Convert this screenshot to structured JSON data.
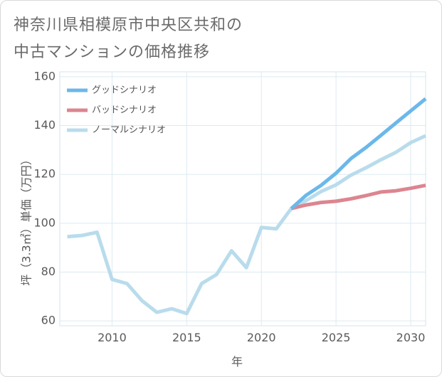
{
  "title": {
    "line1": "神奈川県相模原市中央区共和の",
    "line2": "中古マンションの価格推移"
  },
  "chart_data": {
    "type": "line",
    "xlabel": "年",
    "ylabel": "坪（3.3㎡）単価（万円）",
    "xlim": [
      2006.5,
      2031
    ],
    "ylim": [
      58,
      162
    ],
    "xticks": [
      2010,
      2015,
      2020,
      2025,
      2030
    ],
    "yticks": [
      60,
      80,
      100,
      120,
      140,
      160
    ],
    "grid": true,
    "legend_position": "top-left",
    "series": [
      {
        "name": "グッドシナリオ",
        "color": "#6bb8ea",
        "x": [
          2022,
          2023,
          2024,
          2025,
          2026,
          2027,
          2028,
          2029,
          2030,
          2031
        ],
        "values": [
          106,
          111.5,
          115.5,
          120.5,
          126.5,
          131,
          136,
          141,
          146,
          151
        ]
      },
      {
        "name": "バッドシナリオ",
        "color": "#dc8590",
        "x": [
          2022,
          2023,
          2024,
          2025,
          2026,
          2027,
          2028,
          2029,
          2030,
          2031
        ],
        "values": [
          106,
          107.5,
          108.5,
          109,
          110,
          111.3,
          112.8,
          113.3,
          114.3,
          115.5
        ]
      },
      {
        "name": "ノーマルシナリオ",
        "color": "#b9dcec",
        "x": [
          2007,
          2008,
          2009,
          2010,
          2011,
          2012,
          2013,
          2014,
          2015,
          2016,
          2017,
          2018,
          2019,
          2020,
          2021,
          2022,
          2023,
          2024,
          2025,
          2026,
          2027,
          2028,
          2029,
          2030,
          2031
        ],
        "values": [
          94.5,
          95,
          96.3,
          77,
          75.3,
          68.3,
          63.5,
          65,
          63,
          75.3,
          79,
          88.7,
          81.8,
          98.3,
          97.7,
          106,
          109.3,
          113,
          115.7,
          119.7,
          122.7,
          126,
          129,
          133,
          135.8
        ]
      }
    ]
  }
}
